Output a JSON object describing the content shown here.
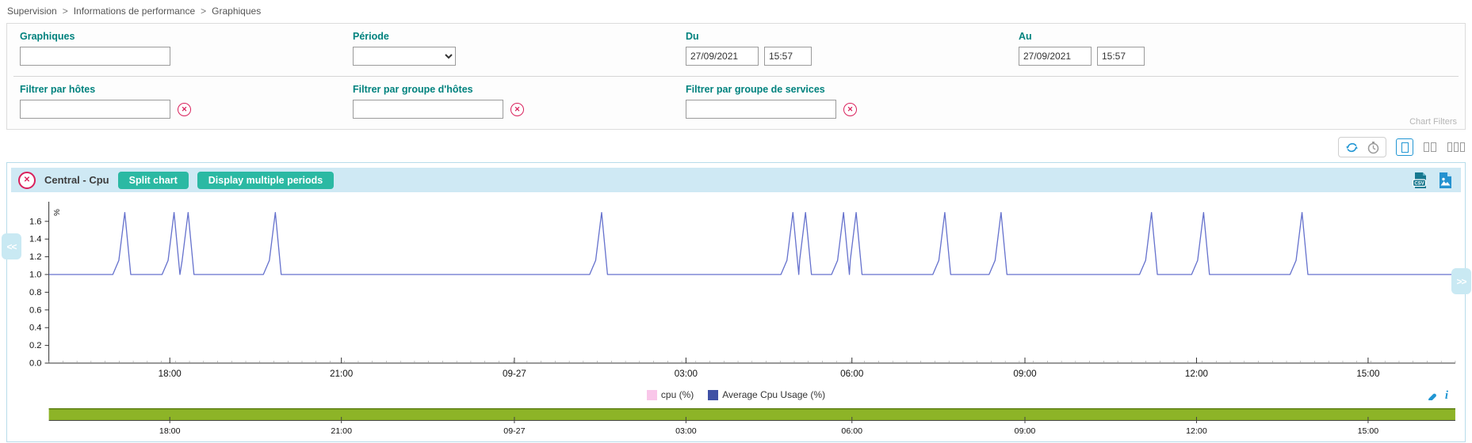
{
  "colors": {
    "label_teal": "#00827e",
    "button_teal": "#2bb9a3",
    "header_bar_blue": "#cfe9f4",
    "panel_border_blue": "#b8dcea",
    "danger_red": "#d9215c",
    "icon_blue": "#2196d3",
    "icon_gray": "#9b9b9b",
    "line_indigo": "#6672cd",
    "legend_cpu_pink": "#f9c6e9",
    "legend_avg_indigo": "#3f51a5",
    "brush_green": "#8db427",
    "brush_green_dark": "#64851b"
  },
  "breadcrumb": {
    "separator": ">",
    "items": [
      "Supervision",
      "Informations de performance",
      "Graphiques"
    ]
  },
  "filters": {
    "graph_label": "Graphiques",
    "graph_value": "",
    "period_label": "Période",
    "period_value": "",
    "from_label": "Du",
    "from_date": "27/09/2021",
    "from_time": "15:57",
    "to_label": "Au",
    "to_date": "27/09/2021",
    "to_time": "15:57",
    "host_filter_label": "Filtrer par hôtes",
    "host_filter_value": "",
    "hostgroup_filter_label": "Filtrer par groupe d'hôtes",
    "hostgroup_filter_value": "",
    "servicegroup_filter_label": "Filtrer par groupe de services",
    "servicegroup_filter_value": "",
    "chart_filters_label": "Chart Filters",
    "clear_icon": "x-circle-icon"
  },
  "toolbar": {
    "icons": [
      "refresh-icon",
      "timer-icon",
      "one-column-layout-icon",
      "two-columns-layout-icon",
      "three-columns-layout-icon"
    ],
    "selected_layout": "one-column"
  },
  "chart_header": {
    "title": "Central - Cpu",
    "split_button": "Split chart",
    "multi_period_button": "Display multiple periods",
    "icons": [
      "close-icon",
      "export-csv-icon",
      "export-png-icon"
    ]
  },
  "pagers": {
    "left": "<<",
    "right": ">>"
  },
  "legend_tools": {
    "icons": [
      "pen-icon",
      "info-icon"
    ],
    "info_glyph": "i"
  },
  "chart_data": {
    "type": "line",
    "title": "Central - Cpu",
    "xlabel": "",
    "ylabel": "%",
    "ylim": [
      0,
      1.75
    ],
    "y_ticks": [
      0.0,
      0.2,
      0.4,
      0.6,
      0.8,
      1.0,
      1.2,
      1.4,
      1.6
    ],
    "x_ticks": [
      {
        "label": "18:00",
        "f": 0.086
      },
      {
        "label": "21:00",
        "f": 0.208
      },
      {
        "label": "09-27",
        "f": 0.331
      },
      {
        "label": "03:00",
        "f": 0.453
      },
      {
        "label": "06:00",
        "f": 0.571
      },
      {
        "label": "09:00",
        "f": 0.694
      },
      {
        "label": "12:00",
        "f": 0.816
      },
      {
        "label": "15:00",
        "f": 0.938
      }
    ],
    "grid": false,
    "legend_position": "bottom",
    "series": [
      {
        "name": "cpu (%)",
        "color": "#f9c6e9",
        "visible": false
      },
      {
        "name": "Average Cpu Usage (%)",
        "color": "#3f51a5",
        "line_color": "#6672cd",
        "baseline": 1.0,
        "peak": 1.7,
        "spikes": [
          {
            "time": "09-26 17:13",
            "f": 0.054
          },
          {
            "time": "09-26 18:05",
            "f": 0.089
          },
          {
            "time": "09-26 18:19",
            "f": 0.099
          },
          {
            "time": "09-26 19:51",
            "f": 0.161
          },
          {
            "time": "09-27 01:35",
            "f": 0.393
          },
          {
            "time": "09-27 04:56",
            "f": 0.529
          },
          {
            "time": "09-27 05:08",
            "f": 0.538
          },
          {
            "time": "09-27 05:48",
            "f": 0.565
          },
          {
            "time": "09-27 06:02",
            "f": 0.574
          },
          {
            "time": "09-27 07:35",
            "f": 0.637
          },
          {
            "time": "09-27 08:34",
            "f": 0.677
          },
          {
            "time": "09-27 11:13",
            "f": 0.784
          },
          {
            "time": "09-27 12:07",
            "f": 0.821
          },
          {
            "time": "09-27 13:50",
            "f": 0.891
          }
        ]
      }
    ],
    "brush": {
      "selection": "full",
      "bar_color": "#8db427",
      "bar_edge_color": "#64851b"
    }
  }
}
